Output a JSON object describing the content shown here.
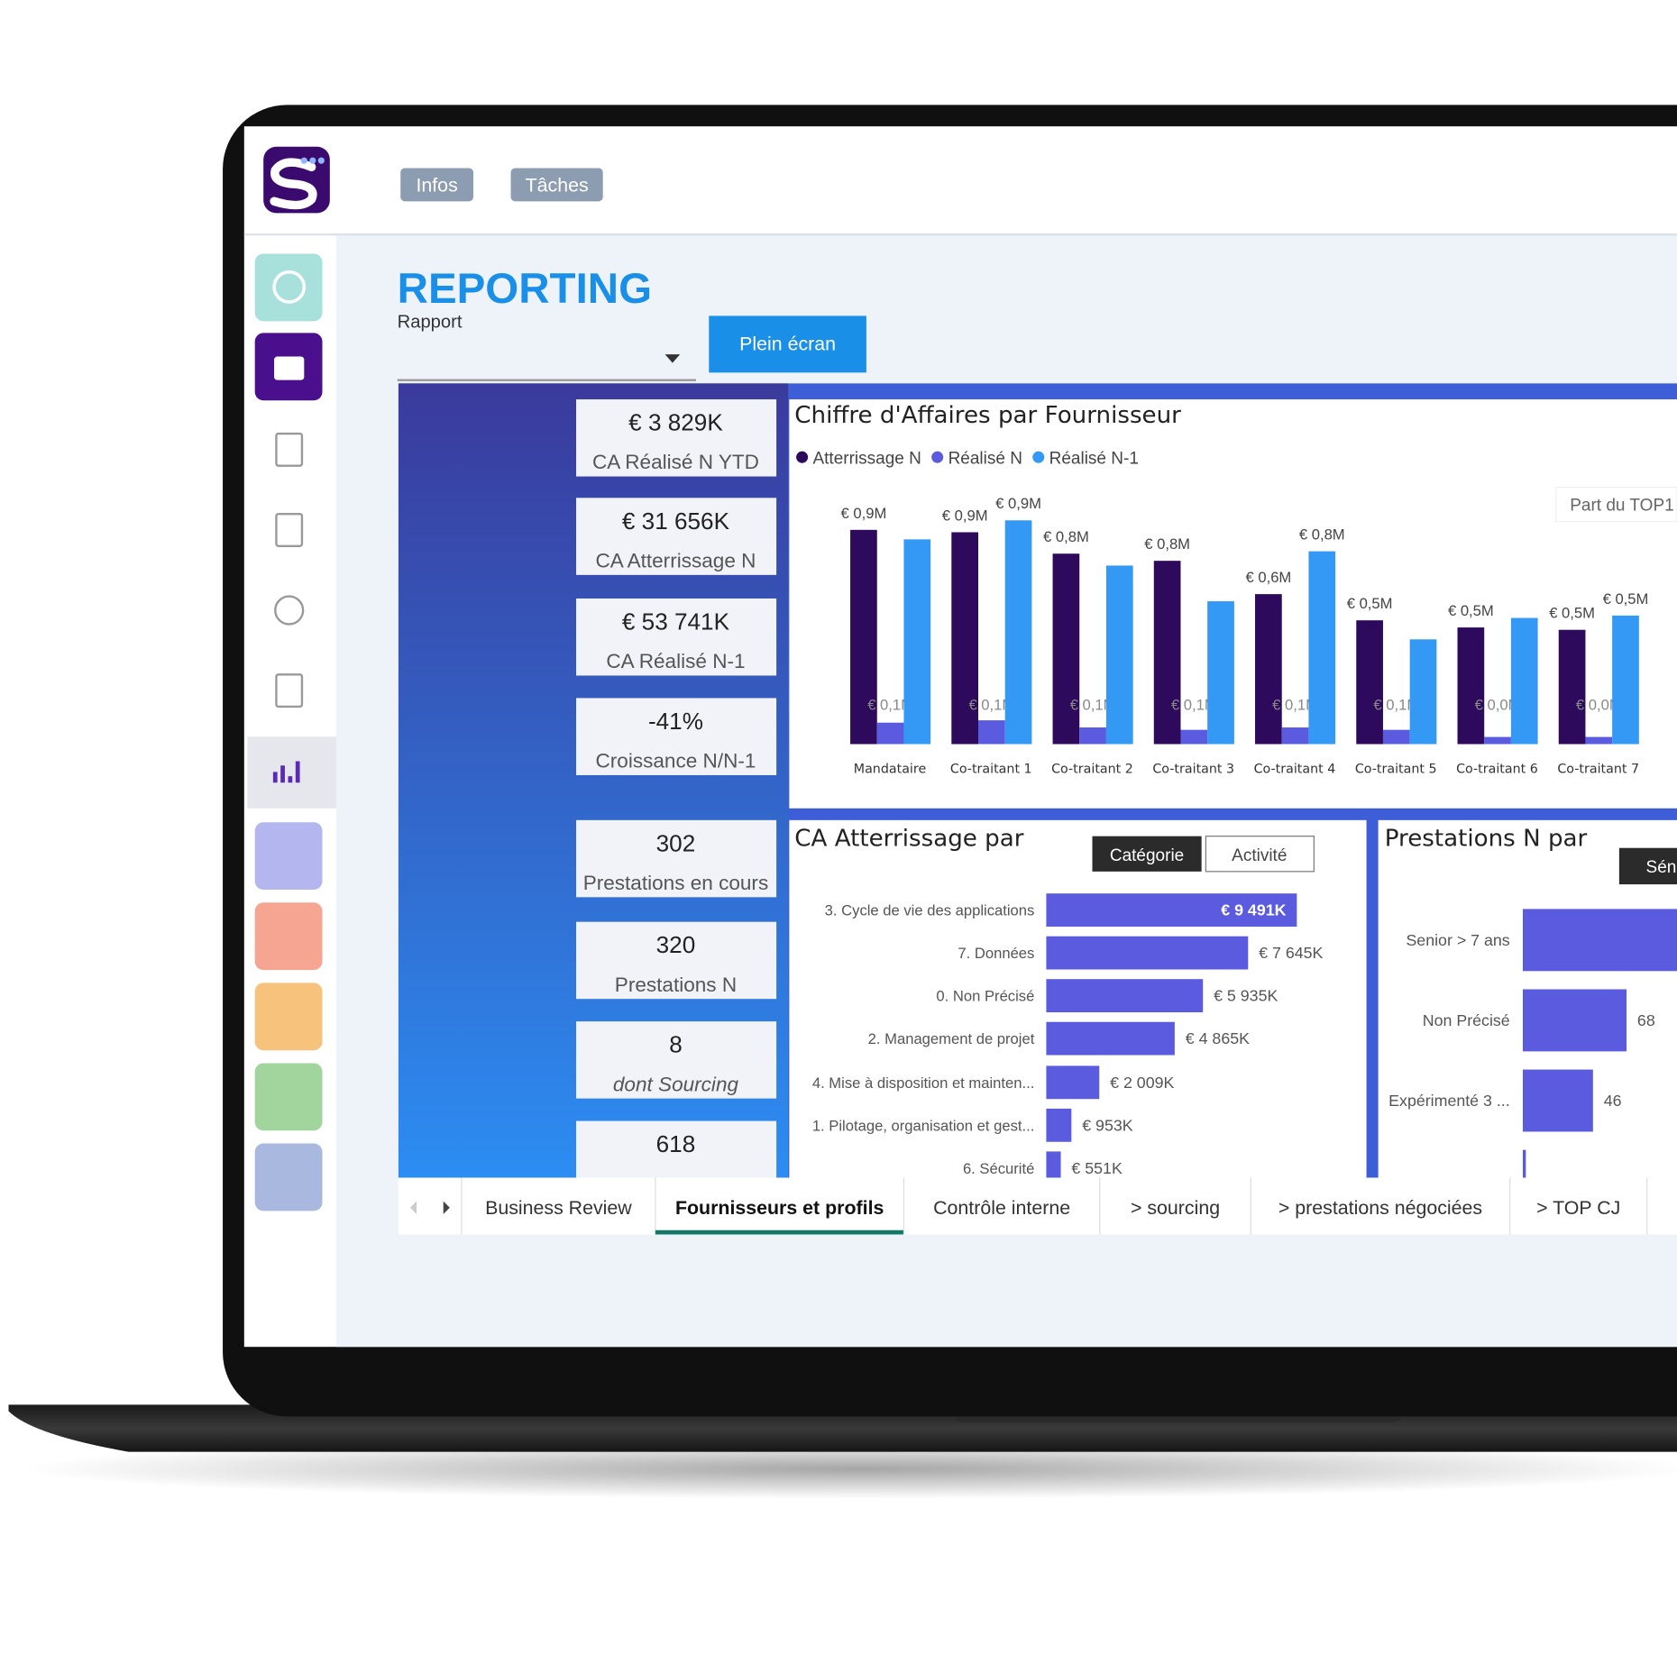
{
  "nav": {
    "buttons": [
      "Infos",
      "Tâches"
    ]
  },
  "header": {
    "title": "REPORTING",
    "subtitle": "Rapport",
    "button": "Plein écran"
  },
  "kpis": [
    {
      "value": "€ 3 829K",
      "label": "CA Réalisé N YTD"
    },
    {
      "value": "€ 31 656K",
      "label": "CA Atterrissage N"
    },
    {
      "value": "€ 53 741K",
      "label": "CA Réalisé N-1"
    },
    {
      "value": "-41%",
      "label": "Croissance N/N-1"
    },
    {
      "value": "302",
      "label": "Prestations en cours"
    },
    {
      "value": "320",
      "label": "Prestations N"
    },
    {
      "value": "8",
      "label": "dont Sourcing"
    },
    {
      "value": "618"
    }
  ],
  "fragments": [
    "Part du TOP1"
  ],
  "chart_data": [
    {
      "type": "bar",
      "title": "Chiffre d'Affaires par Fournisseur",
      "categories": [
        "Mandataire",
        "Co-traitant 1",
        "Co-traitant 2",
        "Co-traitant 3",
        "Co-traitant 4",
        "Co-traitant 5",
        "Co-traitant 6",
        "Co-traitant 7"
      ],
      "series": [
        {
          "name": "Atterrissage N",
          "color": "#2d0a5c",
          "values": [
            0.9,
            0.89,
            0.8,
            0.77,
            0.63,
            0.52,
            0.49,
            0.48
          ],
          "value_labels": [
            "€ 0,9M",
            "€ 0,9M",
            "€ 0,8M",
            "€ 0,8M",
            "€ 0,6M",
            "€ 0,5M",
            "€ 0,5M",
            "€ 0,5M"
          ]
        },
        {
          "name": "Réalisé N",
          "color": "#5b5bdf",
          "values": [
            0.09,
            0.1,
            0.07,
            0.06,
            0.07,
            0.06,
            0.03,
            0.03
          ],
          "value_labels": [
            "€ 0,1M",
            "€ 0,1M",
            "€ 0,1M",
            "€ 0,1M",
            "€ 0,1M",
            "€ 0,1M",
            "€ 0,0M",
            "€ 0,0M"
          ]
        },
        {
          "name": "Réalisé N-1",
          "color": "#3399f5",
          "values": [
            0.86,
            0.94,
            0.75,
            0.6,
            0.81,
            0.44,
            0.53,
            0.54
          ],
          "value_labels": [
            null,
            "€ 0,9M",
            null,
            null,
            "€ 0,8M",
            null,
            null,
            "€ 0,5M"
          ]
        }
      ]
    },
    {
      "type": "hbar",
      "title": "CA Atterrissage par",
      "buttons": [
        "Catégorie",
        "Activité"
      ],
      "color": "#5b5bdf",
      "categories": [
        "3. Cycle de vie des applications",
        "7. Données",
        "0. Non Précisé",
        "2. Management de projet",
        "4. Mise à disposition et mainten...",
        "1. Pilotage, organisation et gest...",
        "6. Sécurité"
      ],
      "values": [
        9491,
        7645,
        5935,
        4865,
        2009,
        953,
        551
      ],
      "value_labels": [
        "€ 9 491K",
        "€ 7 645K",
        "€ 5 935K",
        "€ 4 865K",
        "€ 2 009K",
        "€ 953K",
        "€ 551K"
      ]
    },
    {
      "type": "hbar",
      "title": "Prestations N par",
      "buttons": [
        "Séniorité"
      ],
      "color": "#5b5bdf",
      "categories": [
        "Senior > 7 ans",
        "Non Précisé",
        "Expérimenté 3 ...",
        null
      ],
      "values": [
        160,
        68,
        46,
        2
      ],
      "value_labels": [
        null,
        "68",
        "46",
        null
      ]
    }
  ],
  "tabs": [
    "Business Review",
    "Fournisseurs et profils",
    "Contrôle interne",
    "> sourcing",
    "> prestations négociées",
    "> TOP CJ"
  ]
}
